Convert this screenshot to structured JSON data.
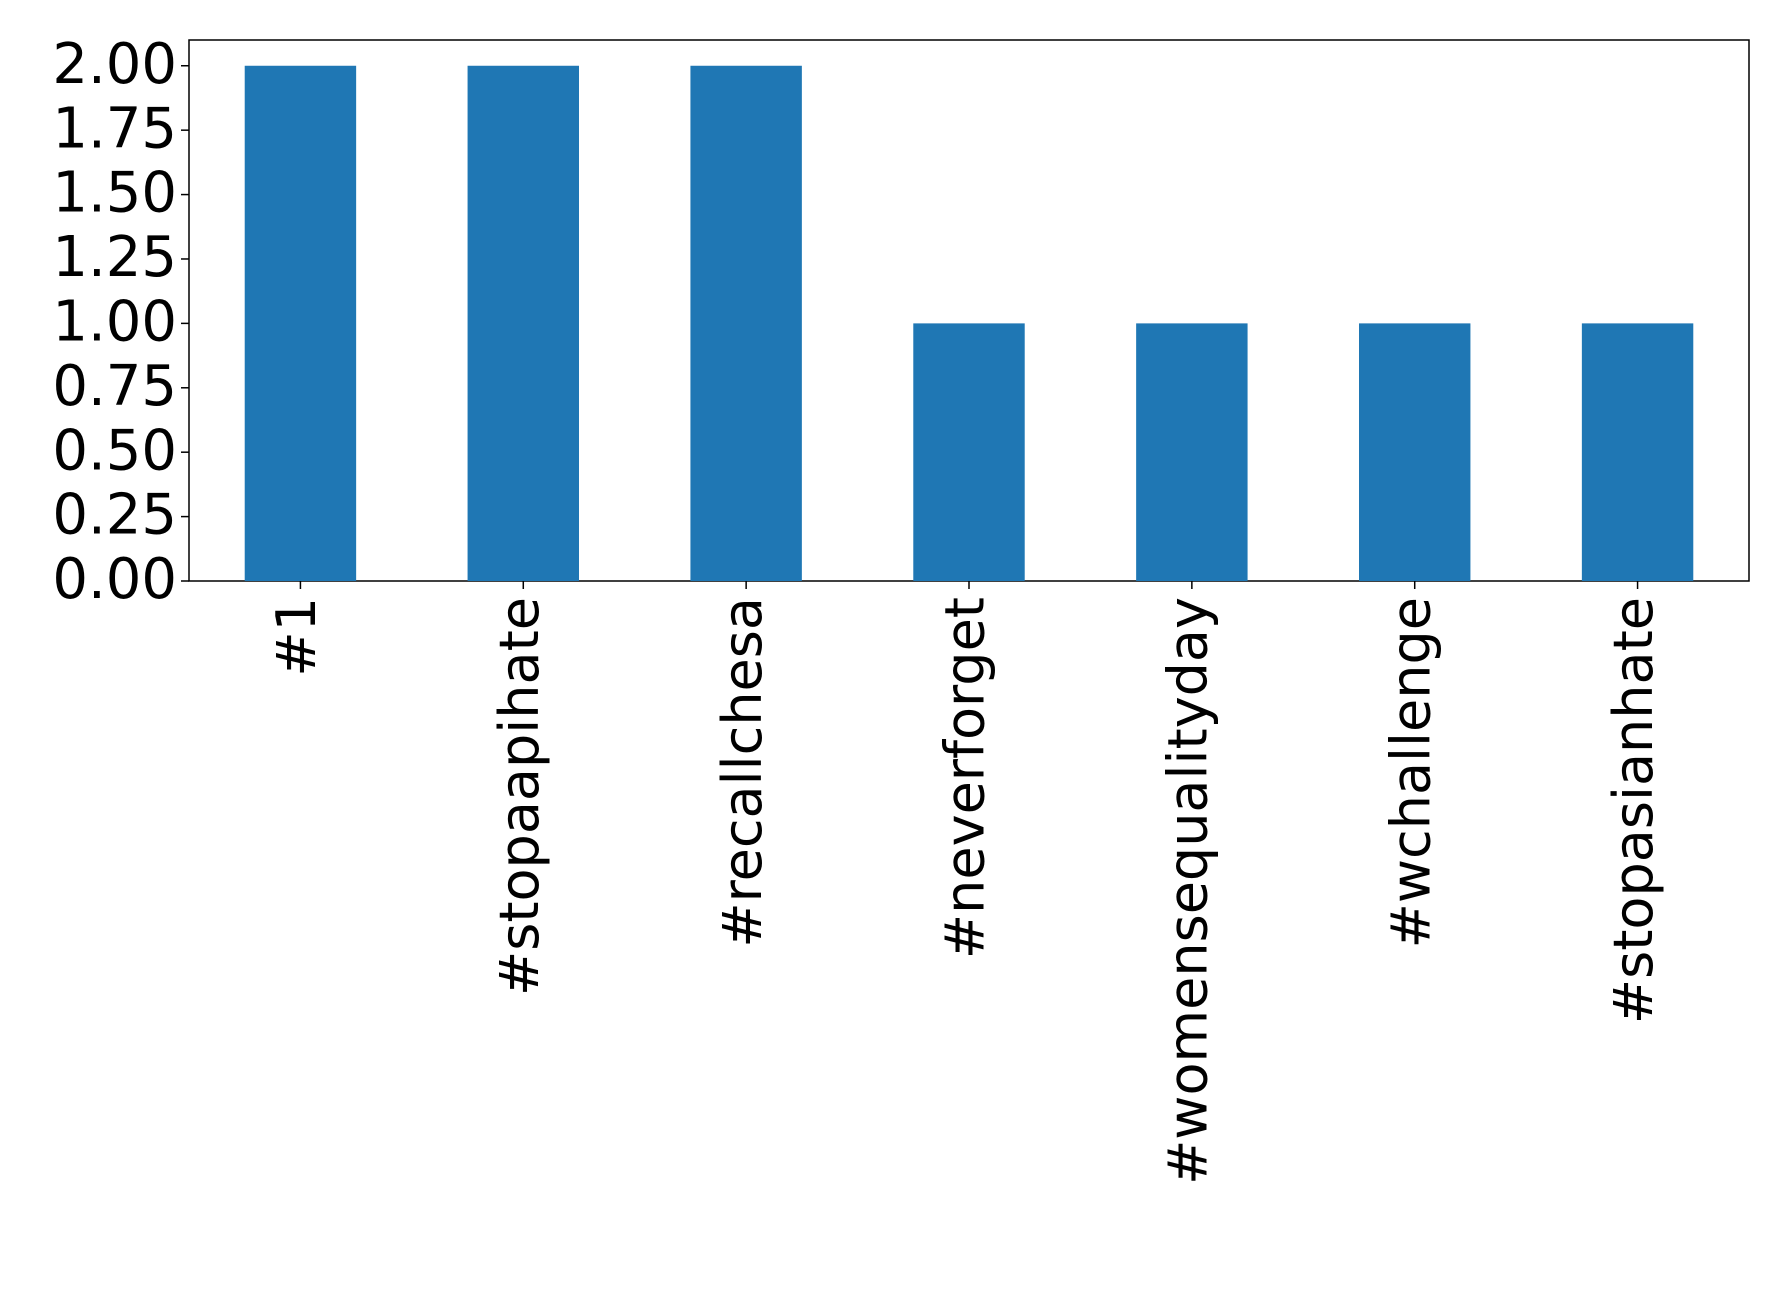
{
  "chart_data": {
    "type": "bar",
    "categories": [
      "#1",
      "#stopaapihate",
      "#recallchesa",
      "#neverforget",
      "#womensequalityday",
      "#wchallenge",
      "#stopasianhate"
    ],
    "values": [
      2,
      2,
      2,
      1,
      1,
      1,
      1
    ],
    "color": "#1f77b4",
    "ylim": [
      0,
      2.1
    ],
    "yticks": [
      {
        "value": 0,
        "label": "0.00"
      },
      {
        "value": 0.25,
        "label": "0.25"
      },
      {
        "value": 0.5,
        "label": "0.50"
      },
      {
        "value": 0.75,
        "label": "0.75"
      },
      {
        "value": 1,
        "label": "1.00"
      },
      {
        "value": 1.25,
        "label": "1.25"
      },
      {
        "value": 1.5,
        "label": "1.50"
      },
      {
        "value": 1.75,
        "label": "1.75"
      },
      {
        "value": 2,
        "label": "2.00"
      }
    ],
    "grid": false
  }
}
